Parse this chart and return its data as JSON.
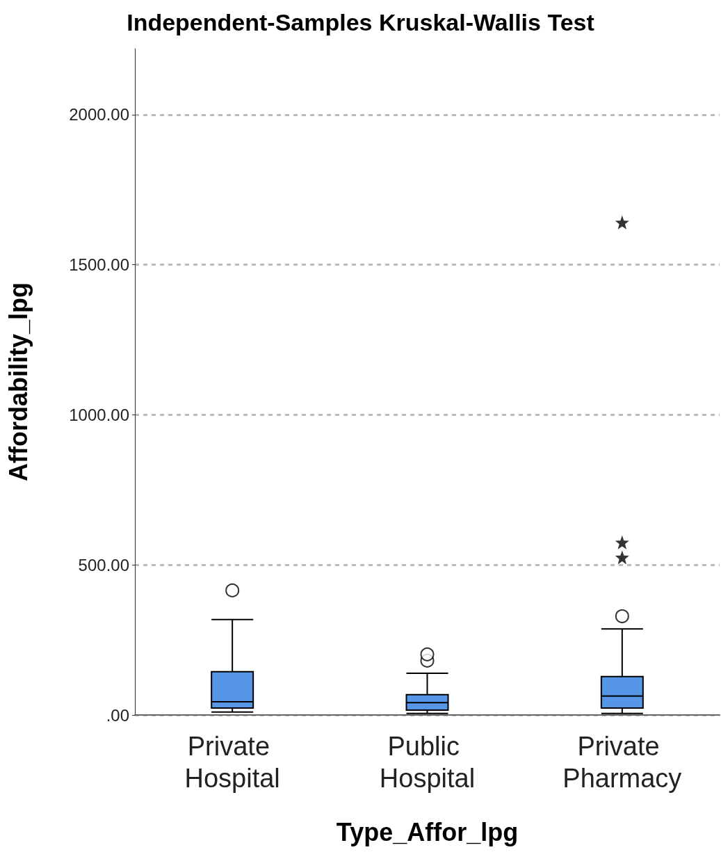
{
  "chart_data": {
    "type": "box",
    "title": "Independent-Samples Kruskal-Wallis Test",
    "xlabel": "Type_Affor_lpg",
    "ylabel": "Affordability_lpg",
    "categories": [
      "Private Hospital",
      "Public Hospital",
      "Private Pharmacy"
    ],
    "series": [
      {
        "type": "box",
        "color": "#5596e6",
        "boxes": [
          {
            "low": 10,
            "q1": 23,
            "median": 44,
            "q3": 144,
            "high": 318,
            "outliers": [
              415
            ]
          },
          {
            "low": 5,
            "q1": 16,
            "median": 41,
            "q3": 68,
            "high": 139,
            "outliers": [
              181,
              202
            ]
          },
          {
            "low": 5,
            "q1": 23,
            "median": 63,
            "q3": 128,
            "high": 287,
            "outliers": [
              329
            ]
          }
        ]
      },
      {
        "type": "scatter",
        "marker": "star",
        "color": "#000000",
        "x": [
          "Private Pharmacy",
          "Private Pharmacy",
          "Private Pharmacy"
        ],
        "values": [
          1641,
          575,
          525
        ]
      }
    ],
    "ylim": [
      0,
      2220
    ],
    "yticks": [
      {
        "value": 0,
        "label": ".00"
      },
      {
        "value": 500,
        "label": "500.00"
      },
      {
        "value": 1000,
        "label": "1000.00"
      },
      {
        "value": 1500,
        "label": "1500.00"
      },
      {
        "value": 2000,
        "label": "2000.00"
      }
    ],
    "grid": "y"
  }
}
